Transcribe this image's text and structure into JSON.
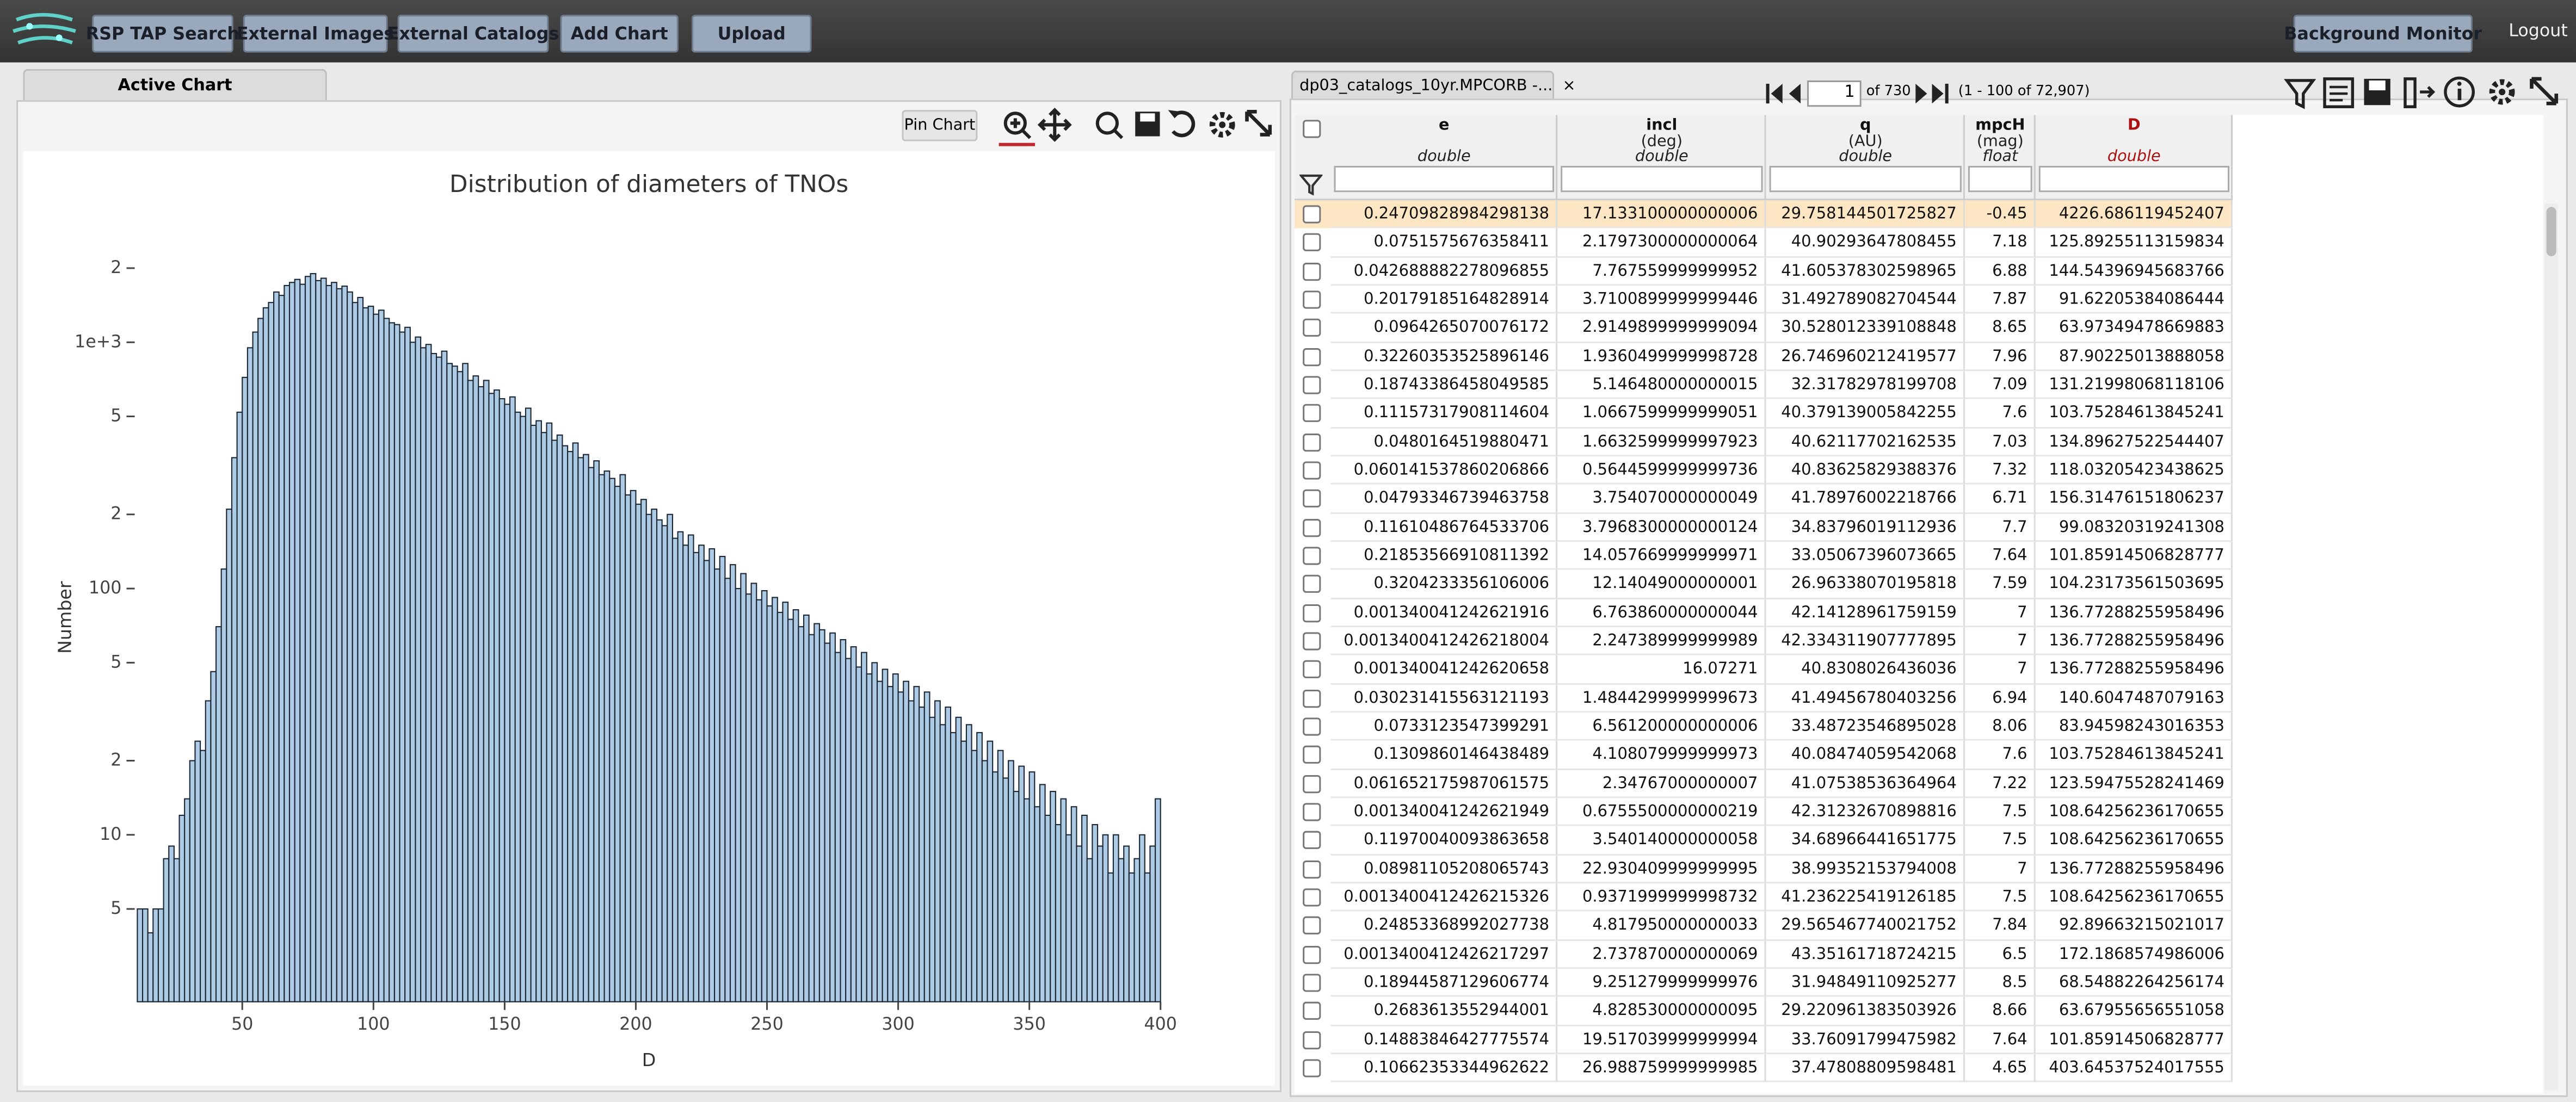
{
  "toolbar": {
    "buttons": [
      "RSP TAP Search",
      "External Images",
      "External Catalogs",
      "Add Chart",
      "Upload"
    ],
    "background_monitor": "Background Monitor",
    "logout": "Logout"
  },
  "chart_panel": {
    "tab": "Active Chart",
    "pin_chart": "Pin Chart"
  },
  "chart_data": {
    "type": "histogram",
    "title": "Distribution of diameters of TNOs",
    "x_label": "D",
    "y_label": "Number",
    "bins": [
      10,
      12,
      14,
      16,
      18,
      20,
      22,
      24,
      26,
      28,
      30,
      32,
      34,
      36,
      38,
      40,
      42,
      44,
      46,
      48,
      50,
      52,
      54,
      56,
      58,
      60,
      62,
      64,
      66,
      68,
      70,
      72,
      74,
      76,
      78,
      80,
      82,
      84,
      86,
      88,
      90,
      92,
      94,
      96,
      98,
      100,
      102,
      104,
      106,
      108,
      110,
      112,
      114,
      116,
      118,
      120,
      122,
      124,
      126,
      128,
      130,
      132,
      134,
      136,
      138,
      140,
      142,
      144,
      146,
      148,
      150,
      152,
      154,
      156,
      158,
      160,
      162,
      164,
      166,
      168,
      170,
      172,
      174,
      176,
      178,
      180,
      182,
      184,
      186,
      188,
      190,
      192,
      194,
      196,
      198,
      200,
      202,
      204,
      206,
      208,
      210,
      212,
      214,
      216,
      218,
      220,
      222,
      224,
      226,
      228,
      230,
      232,
      234,
      236,
      238,
      240,
      242,
      244,
      246,
      248,
      250,
      252,
      254,
      256,
      258,
      260,
      262,
      264,
      266,
      268,
      270,
      272,
      274,
      276,
      278,
      280,
      282,
      284,
      286,
      288,
      290,
      292,
      294,
      296,
      298,
      300,
      302,
      304,
      306,
      308,
      310,
      312,
      314,
      316,
      318,
      320,
      322,
      324,
      326,
      328,
      330,
      332,
      334,
      336,
      338,
      340,
      342,
      344,
      346,
      348,
      350,
      352,
      354,
      356,
      358,
      360,
      362,
      364,
      366,
      368,
      370,
      372,
      374,
      376,
      378,
      380,
      382,
      384,
      386,
      388,
      390,
      392,
      394,
      396,
      398,
      400
    ],
    "values": [
      5,
      5,
      4,
      5,
      5,
      8,
      9,
      8,
      12,
      14,
      20,
      24,
      22,
      35,
      46,
      70,
      120,
      210,
      340,
      520,
      720,
      950,
      1100,
      1250,
      1380,
      1450,
      1600,
      1550,
      1700,
      1750,
      1800,
      1720,
      1850,
      1900,
      1780,
      1820,
      1700,
      1750,
      1650,
      1690,
      1600,
      1450,
      1520,
      1380,
      1400,
      1300,
      1350,
      1250,
      1200,
      1180,
      1100,
      1150,
      1000,
      1050,
      950,
      980,
      900,
      870,
      920,
      820,
      800,
      760,
      820,
      700,
      730,
      660,
      700,
      620,
      640,
      590,
      560,
      600,
      520,
      500,
      540,
      460,
      480,
      430,
      470,
      400,
      420,
      380,
      360,
      390,
      340,
      350,
      310,
      330,
      290,
      300,
      280,
      260,
      290,
      240,
      250,
      220,
      230,
      200,
      210,
      190,
      180,
      200,
      160,
      170,
      150,
      165,
      140,
      150,
      130,
      145,
      120,
      135,
      110,
      125,
      100,
      115,
      95,
      105,
      90,
      98,
      85,
      92,
      80,
      88,
      75,
      82,
      70,
      78,
      65,
      72,
      68,
      60,
      66,
      55,
      62,
      52,
      58,
      48,
      55,
      45,
      50,
      42,
      47,
      40,
      45,
      38,
      42,
      35,
      40,
      33,
      38,
      30,
      35,
      28,
      33,
      26,
      30,
      24,
      28,
      22,
      26,
      20,
      24,
      18,
      22,
      17,
      20,
      15,
      19,
      14,
      18,
      13,
      16,
      12,
      15,
      11,
      14,
      10,
      13,
      9,
      12,
      8,
      11,
      9,
      10,
      7,
      10,
      8,
      9,
      7,
      8,
      10,
      7,
      9,
      14
    ],
    "color": "#aecbe6",
    "edge_color": "#1c2733",
    "xlim": [
      9,
      401
    ],
    "xticks": [
      50,
      100,
      150,
      200,
      250,
      300,
      350,
      400
    ],
    "ylim": [
      2.1,
      3600
    ],
    "log_y": true,
    "grid": false,
    "yticks": [
      {
        "value": 5,
        "label": "5"
      },
      10,
      {
        "value": 20,
        "label": "2"
      },
      {
        "value": 50,
        "label": "5"
      },
      100,
      {
        "value": 200,
        "label": "2"
      },
      {
        "value": 500,
        "label": "5"
      },
      {
        "value": 1000,
        "label": "1e+3"
      },
      {
        "value": 2000,
        "label": "2"
      }
    ]
  },
  "table_panel": {
    "tab": "dp03_catalogs_10yr.MPCORB -...",
    "page": "1",
    "page_of": "of 730",
    "range": "(1 - 100 of 72,907)",
    "columns": [
      {
        "name": "e",
        "type": "double"
      },
      {
        "name": "incl",
        "unit": "(deg)",
        "type": "double"
      },
      {
        "name": "q",
        "unit": "(AU)",
        "type": "double"
      },
      {
        "name": "mpcH",
        "unit": "(mag)",
        "type": "float"
      },
      {
        "name": "D",
        "type": "double"
      }
    ],
    "rows": [
      [
        "0.24709828984298138",
        "17.133100000000006",
        "29.758144501725827",
        "-0.45",
        "4226.686119452407"
      ],
      [
        "0.0751575676358411",
        "2.1797300000000064",
        "40.90293647808455",
        "7.18",
        "125.89255113159834"
      ],
      [
        "0.042688882278096855",
        "7.767559999999952",
        "41.605378302598965",
        "6.88",
        "144.54396945683766"
      ],
      [
        "0.20179185164828914",
        "3.7100899999999446",
        "31.492789082704544",
        "7.87",
        "91.62205384086444"
      ],
      [
        "0.0964265070076172",
        "2.9149899999999094",
        "30.528012339108848",
        "8.65",
        "63.97349478669883"
      ],
      [
        "0.32260353525896146",
        "1.9360499999998728",
        "26.746960212419577",
        "7.96",
        "87.90225013888058"
      ],
      [
        "0.18743386458049585",
        "5.146480000000015",
        "32.31782978199708",
        "7.09",
        "131.21998068118106"
      ],
      [
        "0.11157317908114604",
        "1.0667599999999051",
        "40.379139005842255",
        "7.6",
        "103.75284613845241"
      ],
      [
        "0.0480164519880471",
        "1.6632599999997923",
        "40.62117702162535",
        "7.03",
        "134.89627522544407"
      ],
      [
        "0.060141537860206866",
        "0.5644599999999736",
        "40.83625829388376",
        "7.32",
        "118.03205423438625"
      ],
      [
        "0.04793346739463758",
        "3.754070000000049",
        "41.78976002218766",
        "6.71",
        "156.31476151806237"
      ],
      [
        "0.11610486764533706",
        "3.7968300000000124",
        "34.83796019112936",
        "7.7",
        "99.08320319241308"
      ],
      [
        "0.21853566910811392",
        "14.057669999999971",
        "33.05067396073665",
        "7.64",
        "101.85914506828777"
      ],
      [
        "0.3204233356106006",
        "12.14049000000001",
        "26.96338070195818",
        "7.59",
        "104.23173561503695"
      ],
      [
        "0.001340041242621916",
        "6.763860000000044",
        "42.14128961759159",
        "7",
        "136.77288255958496"
      ],
      [
        "0.0013400412426218004",
        "2.247389999999989",
        "42.334311907777895",
        "7",
        "136.77288255958496"
      ],
      [
        "0.001340041242620658",
        "16.07271",
        "40.8308026436036",
        "7",
        "136.77288255958496"
      ],
      [
        "0.030231415563121193",
        "1.4844299999999673",
        "41.49456780403256",
        "6.94",
        "140.6047487079163"
      ],
      [
        "0.0733123547399291",
        "6.561200000000006",
        "33.48723546895028",
        "8.06",
        "83.94598243016353"
      ],
      [
        "0.1309860146438489",
        "4.108079999999973",
        "40.08474059542068",
        "7.6",
        "103.75284613845241"
      ],
      [
        "0.061652175987061575",
        "2.34767000000007",
        "41.07538536364964",
        "7.22",
        "123.59475528241469"
      ],
      [
        "0.001340041242621949",
        "0.6755500000000219",
        "42.31232670898816",
        "7.5",
        "108.64256236170655"
      ],
      [
        "0.11970040093863658",
        "3.540140000000058",
        "34.68966441651775",
        "7.5",
        "108.64256236170655"
      ],
      [
        "0.08981105208065743",
        "22.930409999999995",
        "38.99352153794008",
        "7",
        "136.77288255958496"
      ],
      [
        "0.0013400412426215326",
        "0.9371999999998732",
        "41.236225419126185",
        "7.5",
        "108.64256236170655"
      ],
      [
        "0.24853368992027738",
        "4.817950000000033",
        "29.565467740021752",
        "7.84",
        "92.89663215021017"
      ],
      [
        "0.0013400412426217297",
        "2.737870000000069",
        "43.35161718724215",
        "6.5",
        "172.1868574986006"
      ],
      [
        "0.18944587129606774",
        "9.251279999999976",
        "31.94849110925277",
        "8.5",
        "68.54882264256174"
      ],
      [
        "0.2683613552944001",
        "4.828530000000095",
        "29.220961383503926",
        "8.66",
        "63.67955656551058"
      ],
      [
        "0.14883846427775574",
        "19.517039999999994",
        "33.76091799475982",
        "7.64",
        "101.85914506828777"
      ],
      [
        "0.10662353344962622",
        "26.988759999999985",
        "37.47808809598481",
        "4.65",
        "403.64537524017555"
      ]
    ]
  }
}
